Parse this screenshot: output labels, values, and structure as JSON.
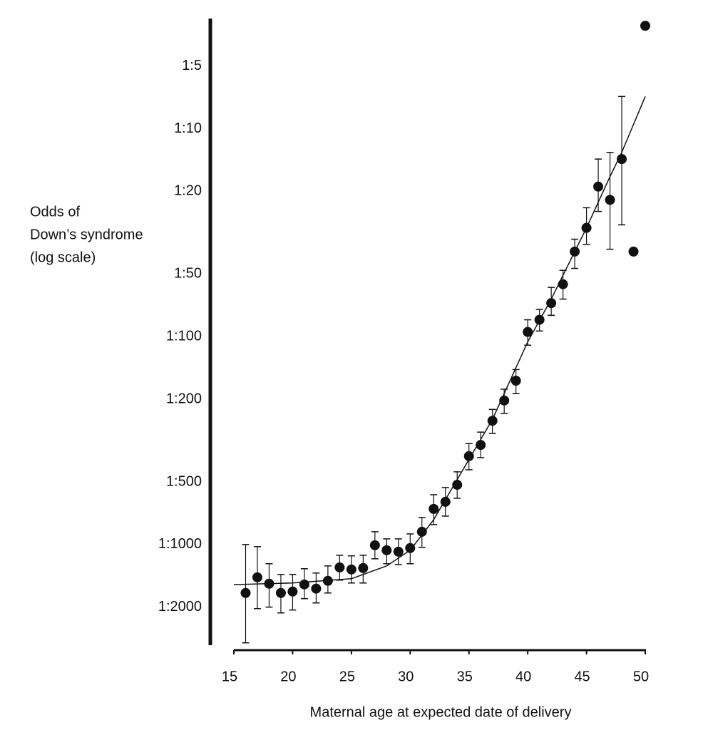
{
  "chart_data": {
    "type": "scatter",
    "ylabel": [
      "Odds of",
      "Down’s syndrome",
      "(log scale)"
    ],
    "xlabel": "Maternal age at expected date of delivery",
    "yscale": "log",
    "ylim": [
      3000,
      3
    ],
    "yticks": [
      {
        "value": 5,
        "label": "1:5"
      },
      {
        "value": 10,
        "label": "1:10"
      },
      {
        "value": 20,
        "label": "1:20"
      },
      {
        "value": 50,
        "label": "1:50"
      },
      {
        "value": 100,
        "label": "1:100"
      },
      {
        "value": 200,
        "label": "1:200"
      },
      {
        "value": 500,
        "label": "1:500"
      },
      {
        "value": 1000,
        "label": "1:1000"
      },
      {
        "value": 2000,
        "label": "1:2000"
      }
    ],
    "xlim": [
      15,
      50
    ],
    "xticks": [
      15,
      20,
      25,
      30,
      35,
      40,
      45,
      50
    ],
    "series": [
      {
        "color": "#111111",
        "x": [
          16,
          17,
          18,
          19,
          20,
          21,
          22,
          23,
          24,
          25,
          26,
          27,
          28,
          29,
          30,
          31,
          32,
          33,
          34,
          35,
          36,
          37,
          38,
          39,
          40,
          41,
          42,
          43,
          44,
          45,
          46,
          47,
          48
        ],
        "values": [
          1710,
          1438,
          1543,
          1710,
          1683,
          1556,
          1630,
          1495,
          1288,
          1318,
          1297,
          1008,
          1065,
          1082,
          1040,
          868,
          674,
          623,
          516,
          376,
          332,
          254,
          203,
          163,
          95,
          83,
          69,
          56,
          39,
          30,
          19,
          22,
          14
        ],
        "error_low": [
          1000,
          1024,
          1237,
          1392,
          1392,
          1307,
          1371,
          1267,
          1126,
          1134,
          1126,
          868,
          939,
          939,
          889,
          741,
          576,
          532,
          447,
          327,
          288,
          224,
          179,
          144,
          83,
          74,
          58,
          48,
          34,
          24,
          14,
          13,
          7
        ],
        "error_high": [
          2970,
          2033,
          2000,
          2132,
          2065,
          1821,
          1909,
          1710,
          1483,
          1531,
          1531,
          1171,
          1237,
          1247,
          1237,
          1032,
          802,
          730,
          599,
          437,
          382,
          292,
          234,
          188,
          110,
          94,
          79,
          66,
          47,
          36,
          25,
          38,
          29
        ]
      }
    ],
    "outliers": {
      "x": [
        49,
        50
      ],
      "values": [
        39,
        3.2
      ]
    },
    "fit": {
      "x": [
        15,
        20,
        25,
        28,
        30,
        32,
        35,
        37,
        40,
        42,
        45,
        47,
        48,
        50
      ],
      "values": [
        1560,
        1530,
        1460,
        1267,
        1065,
        759,
        390,
        250,
        106,
        66,
        30,
        17,
        13,
        7
      ]
    }
  }
}
